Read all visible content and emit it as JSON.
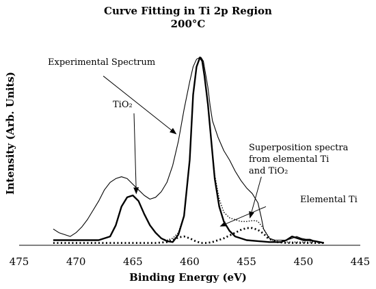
{
  "chart_data": {
    "type": "line",
    "title": "Curve Fitting in Ti 2p Region",
    "subtitle": "200°C",
    "xlabel": "Binding Energy (eV)",
    "ylabel": "Intensity (Arb. Units)",
    "xlim": [
      475,
      445
    ],
    "x_reversed": true,
    "x_ticks": [
      "475",
      "470",
      "465",
      "460",
      "455",
      "450",
      "445"
    ],
    "ylim": [
      0,
      100
    ],
    "grid": false,
    "series": [
      {
        "style": "thin-solid",
        "x": [
          472,
          471.5,
          471,
          470.5,
          470,
          469.5,
          469,
          468.5,
          468,
          467.5,
          467,
          466.5,
          466,
          465.5,
          465,
          464.5,
          464,
          463.5,
          463,
          462.5,
          462,
          461.5,
          461,
          460.5,
          460,
          459.7,
          459.4,
          459.1,
          459,
          458.8,
          458.6,
          458.4,
          458.2,
          458,
          457.5,
          457,
          456.5,
          456,
          455.5,
          455,
          454.5,
          454,
          453.7,
          453.5,
          453,
          452.5,
          452,
          451.5,
          451,
          450.6,
          450.2,
          449.8,
          449.4,
          449,
          448.5,
          448.2
        ],
        "y": [
          8,
          6,
          5,
          4,
          6,
          9,
          13,
          18,
          23,
          29,
          33,
          35,
          36,
          35,
          32,
          29,
          26,
          24,
          25,
          28,
          33,
          42,
          55,
          72,
          87,
          95,
          99,
          100,
          100,
          98,
          91,
          84,
          74,
          66,
          57,
          50,
          45,
          39,
          34,
          30,
          27,
          22,
          14,
          8,
          3,
          2,
          2,
          2,
          3,
          4,
          3,
          2.5,
          2.5,
          1.5,
          1,
          0.5
        ]
      },
      {
        "style": "thick-solid",
        "x": [
          472,
          470,
          468,
          467,
          466.5,
          466,
          465.5,
          465,
          464.5,
          464,
          463.5,
          463,
          462.5,
          462,
          461.5,
          461,
          460.5,
          460,
          459.7,
          459.4,
          459.1,
          458.9,
          458.7,
          458.4,
          458.1,
          457.8,
          457.4,
          457,
          456.5,
          456,
          455,
          454,
          453,
          452,
          451.5,
          451,
          450.5,
          450,
          449.5,
          449,
          448.2
        ],
        "y": [
          2,
          2,
          2,
          4,
          10,
          20,
          25,
          26,
          23,
          16,
          10,
          6,
          3,
          1.5,
          1,
          5,
          15,
          45,
          80,
          95,
          100,
          98,
          90,
          75,
          55,
          35,
          20,
          12,
          7,
          4,
          2,
          1.5,
          1,
          1,
          2,
          4,
          3,
          2,
          2,
          1.5,
          0.5
        ]
      },
      {
        "style": "dotted",
        "x": [
          472,
          468,
          467,
          466.5,
          466,
          465.5,
          465,
          464.5,
          464,
          463.5,
          463,
          462.5,
          462,
          461.5,
          461,
          460.5,
          460,
          459.7,
          459.4,
          459.1,
          458.9,
          458.7,
          458.4,
          458.1,
          457.8,
          457.4,
          457,
          456.5,
          456,
          455.5,
          455,
          454.5,
          454.2,
          454,
          453.6,
          453.2,
          452.8,
          452,
          451,
          450,
          449,
          448.2
        ],
        "y": [
          2,
          2,
          4,
          10,
          20,
          25,
          26,
          23,
          16,
          10,
          6,
          3,
          2,
          3,
          6,
          15,
          45,
          80,
          95,
          100,
          98,
          90,
          75,
          55,
          37,
          24,
          17,
          14,
          13,
          12,
          12,
          12.5,
          12.5,
          12,
          9,
          5,
          2,
          1,
          1,
          1,
          1,
          0.5
        ]
      },
      {
        "style": "thick-dotted",
        "x": [
          472,
          470,
          468,
          466,
          464,
          463,
          462,
          461.5,
          461,
          460.5,
          460,
          459.5,
          459,
          458.5,
          458,
          457.5,
          457,
          456.5,
          456,
          455.5,
          455,
          454.5,
          454,
          453.5,
          453.2,
          452.8,
          452.3,
          451.5,
          450,
          448.2
        ],
        "y": [
          0.5,
          0.5,
          0.5,
          0.5,
          0.5,
          0.5,
          1,
          2,
          3.5,
          4,
          3,
          1.5,
          0.5,
          0.5,
          1,
          2,
          3,
          4.5,
          6,
          7.5,
          8.5,
          8.5,
          7.5,
          5.5,
          3.5,
          2,
          1,
          0.5,
          0.5,
          0.5
        ]
      }
    ],
    "annotations": [
      {
        "lines": [
          "Experimental Spectrum"
        ],
        "arrow_from": [
          467.6,
          90
        ],
        "arrow_to": [
          461.2,
          59
        ]
      },
      {
        "lines": [
          "TiO₂"
        ],
        "arrow_from": [
          464.9,
          70
        ],
        "arrow_to": [
          464.7,
          27
        ]
      },
      {
        "lines": [
          "Superposition spectra",
          "from elemental Ti",
          "and TiO₂"
        ],
        "arrow_from": [
          453.7,
          36
        ],
        "arrow_to": [
          454.7,
          14
        ]
      },
      {
        "lines": [
          "Elemental Ti"
        ],
        "arrow_from": [
          453.3,
          20
        ],
        "arrow_to": [
          457.3,
          9.5
        ]
      }
    ]
  }
}
